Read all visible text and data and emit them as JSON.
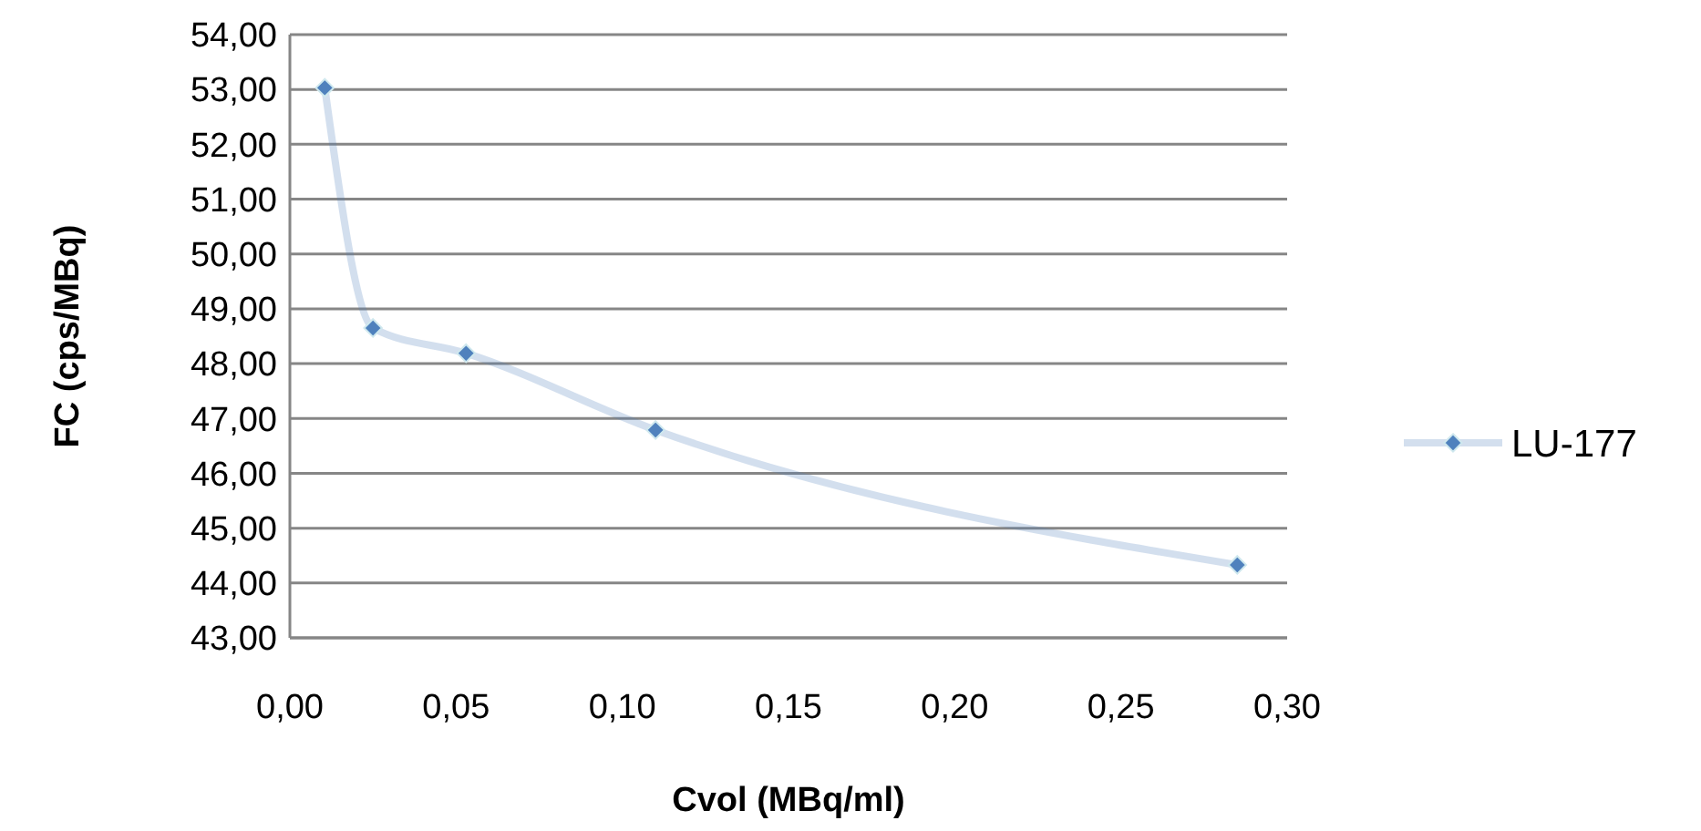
{
  "chart_data": {
    "type": "line",
    "xlabel": "Cvol (MBq/ml)",
    "ylabel": "FC (cps/MBq)",
    "x": [
      0.0105,
      0.025,
      0.053,
      0.11,
      0.285
    ],
    "series": [
      {
        "name": "LU-177",
        "color": "#4f81bd",
        "values": [
          53.03,
          48.65,
          48.19,
          46.79,
          44.33
        ]
      }
    ],
    "xlim": [
      0,
      0.3
    ],
    "xticks": [
      {
        "value": 0,
        "label": "0,00"
      },
      {
        "value": 0.05,
        "label": "0,05"
      },
      {
        "value": 0.1,
        "label": "0,10"
      },
      {
        "value": 0.15,
        "label": "0,15"
      },
      {
        "value": 0.2,
        "label": "0,20"
      },
      {
        "value": 0.25,
        "label": "0,25"
      },
      {
        "value": 0.3,
        "label": "0,30"
      }
    ],
    "ylim": [
      43,
      54
    ],
    "yticks": [
      {
        "value": 43,
        "label": "43,00"
      },
      {
        "value": 44,
        "label": "44,00"
      },
      {
        "value": 45,
        "label": "45,00"
      },
      {
        "value": 46,
        "label": "46,00"
      },
      {
        "value": 47,
        "label": "47,00"
      },
      {
        "value": 48,
        "label": "48,00"
      },
      {
        "value": 49,
        "label": "49,00"
      },
      {
        "value": 50,
        "label": "50,00"
      },
      {
        "value": 51,
        "label": "51,00"
      },
      {
        "value": 52,
        "label": "52,00"
      },
      {
        "value": 53,
        "label": "53,00"
      },
      {
        "value": 54,
        "label": "54,00"
      }
    ],
    "grid": "y",
    "legend": "right",
    "marker": "diamond",
    "line_style": "solid"
  }
}
